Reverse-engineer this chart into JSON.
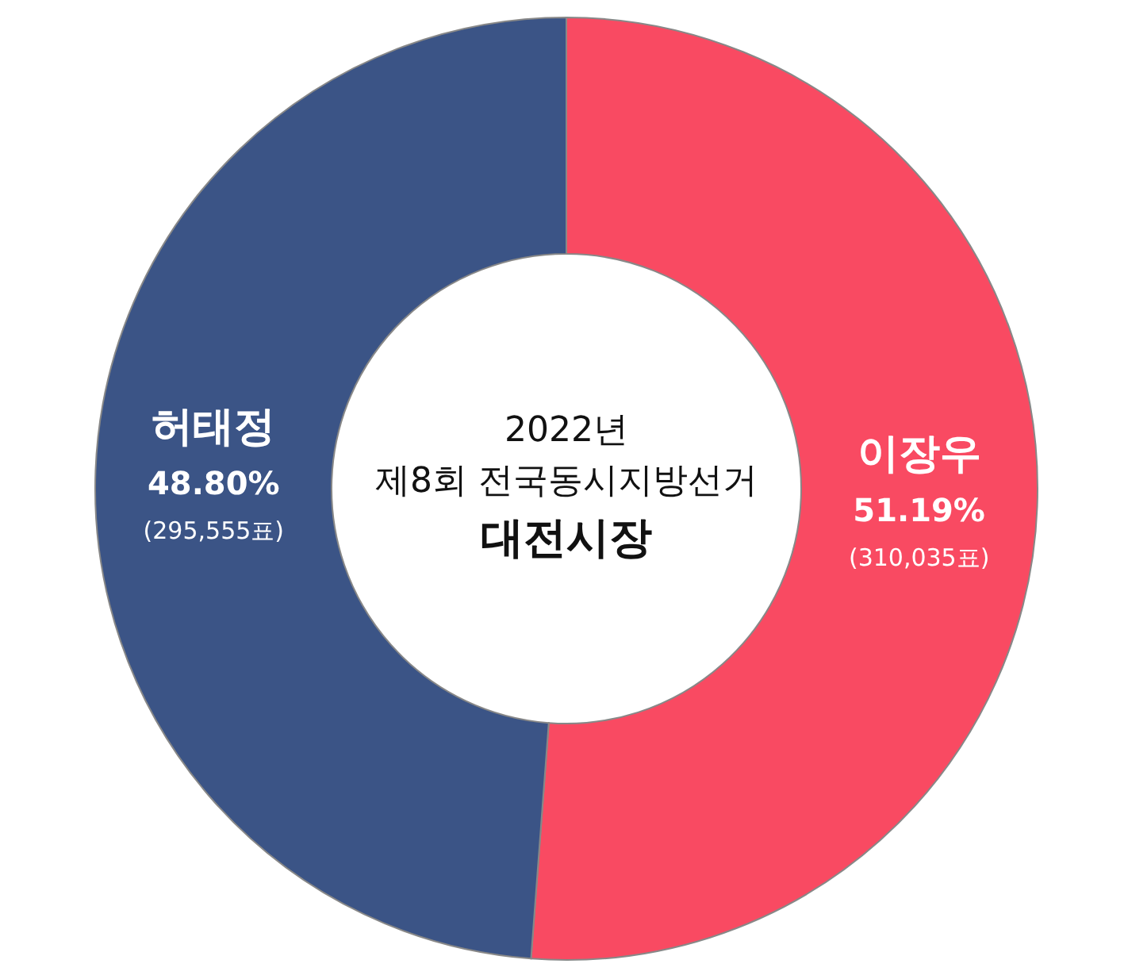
{
  "chart_data": {
    "type": "donut",
    "title": "대전시장",
    "subtitle": "2022년 제8회 전국동시지방선거",
    "categories": [
      "이장우",
      "허태정"
    ],
    "values": [
      51.19,
      48.8
    ],
    "colors": [
      "#f94a62",
      "#3b5486"
    ],
    "value_labels": [
      "51.19%",
      "48.80%"
    ],
    "annotations": [
      "(310,035표)",
      "(295,555표)"
    ]
  }
}
